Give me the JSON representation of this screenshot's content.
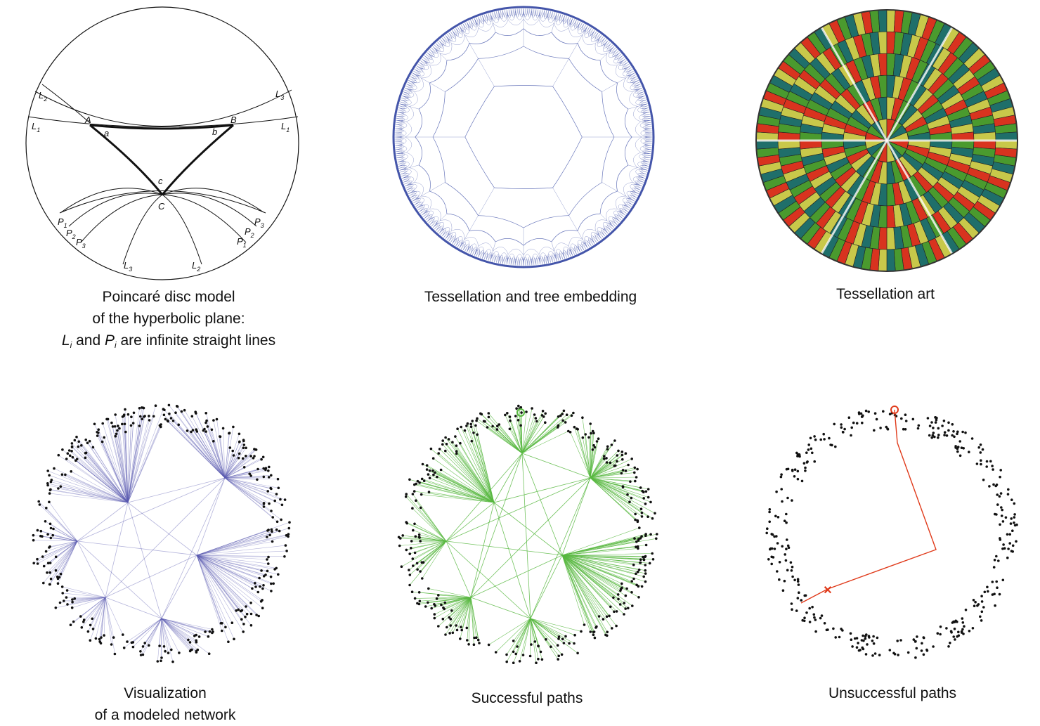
{
  "panels": [
    {
      "id": "poincare",
      "caption_lines": [
        "Poincaré disc model",
        "of the hyperbolic plane:"
      ],
      "caption_last": {
        "l": "L",
        "l_sub": "i",
        "mid": " and ",
        "p": "P",
        "p_sub": "i",
        "rest": " are infinite straight lines"
      },
      "labels": {
        "L2_left": "L",
        "L2_left_sub": "2",
        "L3_right": "L",
        "L3_right_sub": "3",
        "L1_left": "L",
        "L1_left_sub": "1",
        "L1_right": "L",
        "L1_right_sub": "1",
        "A": "A",
        "B": "B",
        "a": "a",
        "b": "b",
        "c": "c",
        "C": "C",
        "P1_left": "P",
        "P1_left_sub": "1",
        "P2_left": "P",
        "P2_left_sub": "2",
        "P3_left": "P",
        "P3_left_sub": "3",
        "P3_right": "P",
        "P3_right_sub": "3",
        "P2_right": "P",
        "P2_right_sub": "2",
        "P1_right": "P",
        "P1_right_sub": "1",
        "L3_bottom": "L",
        "L3_bottom_sub": "3",
        "L2_bottom": "L",
        "L2_bottom_sub": "2"
      }
    },
    {
      "id": "tessellation",
      "caption_lines": [
        "Tessellation and tree embedding"
      ]
    },
    {
      "id": "tessellation-art",
      "caption_lines": [
        "Tessellation art"
      ]
    },
    {
      "id": "modeled-network",
      "caption_lines": [
        "Visualization",
        "of a modeled network"
      ]
    },
    {
      "id": "successful-paths",
      "caption_lines": [
        "Successful paths"
      ]
    },
    {
      "id": "unsuccessful-paths",
      "caption_lines": [
        "Unsuccessful paths"
      ]
    }
  ],
  "colors": {
    "tessellation_line": "#4455aa",
    "network_edge": "#5a5ab0",
    "success_edge": "#58b840",
    "fail_path": "#e03a1a",
    "node": "#111111",
    "art_red": "#d8331f",
    "art_green": "#4a9a2e",
    "art_teal": "#1f6f6a",
    "art_yellow": "#c8c84a"
  }
}
